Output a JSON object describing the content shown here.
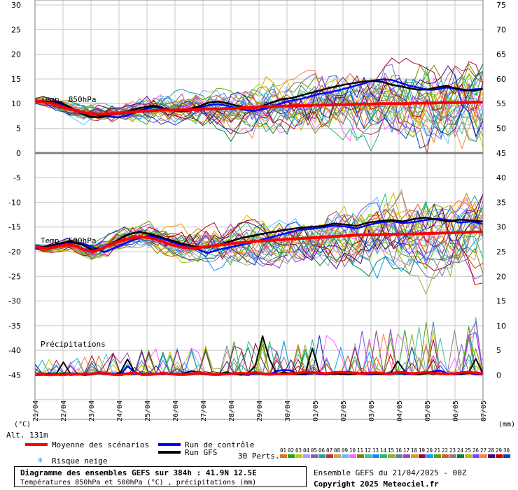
{
  "chart_data": {
    "type": "line",
    "title": "Diagramme des ensembles GEFS sur 384h : 41.9N 12.5E",
    "subtitle": "Températures 850hPa et 500hPa (°C) , précipitations (mm)",
    "x_tick_labels": [
      "21/04",
      "22/04",
      "23/04",
      "24/04",
      "25/04",
      "26/04",
      "27/04",
      "28/04",
      "29/04",
      "30/04",
      "01/05",
      "02/05",
      "03/05",
      "04/05",
      "05/05",
      "06/05",
      "07/05"
    ],
    "left_axis": {
      "unit_label": "(°C)",
      "ticks": [
        30,
        25,
        20,
        15,
        10,
        5,
        0,
        -5,
        -10,
        -15,
        -20,
        -25,
        -30,
        -35,
        -40,
        -45
      ],
      "ylim": [
        -54,
        31
      ]
    },
    "right_axis": {
      "unit_label": "(mm)",
      "ticks": [
        75,
        70,
        65,
        60,
        55,
        50,
        45,
        40,
        35,
        30,
        25,
        20,
        15,
        10,
        5,
        0
      ]
    },
    "panels": [
      {
        "label": "Temp. 850hPa",
        "mean_scenarios": [
          10.5,
          10.4,
          10.2,
          9.8,
          9.3,
          8.9,
          8.5,
          8.2,
          8.0,
          7.9,
          7.9,
          8.0,
          8.1,
          8.2,
          8.3,
          8.4,
          8.5,
          8.6,
          8.7,
          8.7,
          8.7,
          8.8,
          8.8,
          8.8,
          8.9,
          8.9,
          8.9,
          9.0,
          9.0,
          9.1,
          9.2,
          9.2,
          9.3,
          9.4,
          9.4,
          9.5,
          9.5,
          9.6,
          9.6,
          9.6,
          9.7,
          9.7,
          9.7,
          9.8,
          9.8,
          9.8,
          9.9,
          9.9,
          9.9,
          10.0,
          10.0,
          10.0,
          10.0,
          10.0,
          10.1,
          10.1,
          10.1,
          10.1,
          10.2,
          10.2,
          10.2,
          10.2,
          10.2,
          10.3,
          10.3
        ],
        "control_run": [
          10.6,
          10.5,
          10.3,
          9.7,
          9.0,
          8.4,
          7.9,
          7.6,
          7.4,
          7.2,
          7.5,
          8.3,
          8.9,
          9.3,
          9.1,
          8.6,
          8.4,
          8.6,
          9.2,
          9.7,
          9.9,
          9.6,
          9.1,
          8.7,
          8.5,
          8.9,
          9.4,
          10.1,
          10.6,
          10.9,
          11.4,
          11.9,
          12.2,
          12.6,
          13.1,
          13.6,
          14.1,
          14.7,
          14.9,
          14.8,
          14.2,
          13.6,
          13.2,
          12.8,
          12.9,
          13.3,
          13.0,
          12.6,
          12.9,
          13.0
        ],
        "gfs_run": [
          10.4,
          10.3,
          10.5,
          10.0,
          9.1,
          8.1,
          7.4,
          7.2,
          7.6,
          8.0,
          8.4,
          8.9,
          9.3,
          9.6,
          9.1,
          8.7,
          8.5,
          9.0,
          9.5,
          10.2,
          10.4,
          10.1,
          9.6,
          9.3,
          9.1,
          9.6,
          10.3,
          10.9,
          11.1,
          11.6,
          12.1,
          12.6,
          13.1,
          13.5,
          13.9,
          14.2,
          14.5,
          14.6,
          14.4,
          13.8,
          13.5,
          13.1,
          12.8,
          12.9,
          13.3,
          13.6,
          13.1,
          12.8,
          12.6,
          13.0
        ]
      },
      {
        "label": "Temp. 500hPa",
        "mean_scenarios": [
          -19.0,
          -19.3,
          -19.2,
          -18.9,
          -18.6,
          -18.8,
          -19.6,
          -20.0,
          -19.5,
          -18.8,
          -18.1,
          -17.6,
          -17.2,
          -17.0,
          -17.2,
          -17.6,
          -18.2,
          -18.7,
          -19.1,
          -19.3,
          -19.2,
          -19.0,
          -18.8,
          -18.6,
          -18.4,
          -18.2,
          -18.1,
          -17.9,
          -17.8,
          -17.7,
          -17.6,
          -17.5,
          -17.4,
          -17.3,
          -17.2,
          -17.1,
          -17.0,
          -16.9,
          -16.8,
          -16.7,
          -16.6,
          -16.6,
          -16.6,
          -16.5,
          -16.5,
          -16.5,
          -16.4,
          -16.4,
          -16.3,
          -16.3,
          -16.2,
          -16.2,
          -16.1,
          -16.1,
          -16.0,
          -16.0
        ],
        "control_run": [
          -19.4,
          -19.1,
          -18.6,
          -18.2,
          -18.3,
          -19.1,
          -20.1,
          -19.2,
          -18.1,
          -17.3,
          -16.8,
          -17.3,
          -18.1,
          -18.9,
          -19.4,
          -20.3,
          -19.6,
          -19.1,
          -18.6,
          -18.1,
          -17.4,
          -16.8,
          -16.2,
          -15.6,
          -15.4,
          -15.1,
          -14.7,
          -14.9,
          -15.3,
          -14.6,
          -14.1,
          -13.8,
          -14.2,
          -14.0,
          -13.6,
          -13.3,
          -13.6,
          -14.1,
          -13.9,
          -14.4
        ],
        "gfs_run": [
          -19.1,
          -19.0,
          -18.4,
          -17.9,
          -18.5,
          -19.6,
          -19.2,
          -17.9,
          -16.6,
          -16.0,
          -16.4,
          -17.1,
          -17.8,
          -18.5,
          -19.0,
          -19.2,
          -18.6,
          -17.9,
          -17.2,
          -16.8,
          -16.3,
          -15.9,
          -15.5,
          -15.2,
          -15.0,
          -14.8,
          -14.3,
          -14.5,
          -14.8,
          -14.1,
          -13.8,
          -13.6,
          -13.9,
          -13.4,
          -13.1,
          -13.5,
          -13.9,
          -13.5,
          -13.7,
          -13.9
        ]
      },
      {
        "label": "Précipitations",
        "mean_scenarios": [
          0,
          0.1,
          0,
          0.1,
          0,
          0.2,
          0.1,
          0.3,
          0.2,
          0.6,
          0.3,
          0.1,
          0,
          0.3,
          0.5,
          0.1,
          0.1,
          0.2,
          0.4,
          0.2,
          0.1,
          0.1,
          0.2,
          0.6,
          0.3,
          0.1,
          0.1,
          0.2,
          0.3,
          0.4,
          0.3,
          0.6,
          0.2,
          0.1,
          0.2,
          0.2,
          0.3,
          0.4,
          0.6,
          0.5,
          0.4,
          0.3,
          0.5,
          0.6,
          0.5,
          0.4,
          0.3,
          0.4,
          0.5,
          0.3,
          0.2,
          0.6,
          0.5,
          0.3,
          0.4,
          0.6,
          0.4,
          0.3,
          0.2,
          0.3,
          0.5,
          0.6,
          0.4,
          0.3
        ],
        "control_run": [
          0,
          0,
          0.2,
          0,
          0.3,
          0,
          0.1,
          0,
          0.1,
          0.4,
          0.2,
          0,
          0,
          1.8,
          0.6,
          0,
          0,
          0.1,
          0.3,
          0.2,
          0,
          0,
          0.1,
          0.5,
          0.2,
          0,
          0,
          0.2,
          0.3,
          0.1,
          0,
          0.4,
          0.3,
          0.1,
          0.8,
          1.0,
          0.9,
          0.2,
          0.1,
          0.6,
          0.2,
          0.1,
          0.3,
          0.5,
          0.7,
          0.4,
          0.2,
          0.1,
          0.3,
          0.2,
          0.1,
          0.5,
          0.3,
          0.2,
          0.1,
          0.4,
          0.7,
          0.9,
          0.3,
          0.1,
          0.2,
          0.4,
          0.2,
          0.1
        ],
        "gfs_run": [
          0,
          0,
          0,
          0.3,
          2.6,
          0.2,
          0.3,
          0,
          0.2,
          0.5,
          0.3,
          0,
          0.5,
          3.2,
          0.6,
          0.1,
          0,
          0.2,
          0.5,
          0.3,
          0,
          0.4,
          0.8,
          0.6,
          0.1,
          0,
          0.3,
          0.6,
          0.2,
          0,
          0.4,
          1.9,
          7.9,
          3.1,
          0.2,
          0.6,
          0.3,
          0.1,
          0.2,
          5.4,
          0.6,
          0.2,
          0.3,
          0.2,
          0.1,
          0.2,
          0.5,
          0.4,
          0.2,
          0.1,
          0.3,
          2.8,
          0.7,
          0.2,
          0.1,
          0.3,
          0.6,
          0.3,
          0.2,
          0.4,
          0.2,
          0.5,
          3.3,
          0.2
        ]
      }
    ],
    "legend": [
      {
        "name": "Moyenne des scénarios",
        "color": "#ff0000"
      },
      {
        "name": "Run de contrôle",
        "color": "#0000ff"
      },
      {
        "name": "Run GFS",
        "color": "#000000"
      },
      {
        "name": "Risque neige"
      }
    ],
    "perturbations": {
      "title": "30 Perts.",
      "labels": [
        "01",
        "02",
        "03",
        "04",
        "05",
        "06",
        "07",
        "08",
        "09",
        "10",
        "11",
        "12",
        "13",
        "14",
        "15",
        "16",
        "17",
        "18",
        "19",
        "20",
        "21",
        "22",
        "23",
        "24",
        "25",
        "26",
        "27",
        "28",
        "29",
        "30"
      ],
      "colors": [
        "#e07020",
        "#22a022",
        "#c8c800",
        "#a0a0ff",
        "#8060c0",
        "#20a0a0",
        "#c03030",
        "#d0a060",
        "#60c0ff",
        "#ff60ff",
        "#808000",
        "#40c0a0",
        "#2080ff",
        "#20c060",
        "#90b030",
        "#6080a0",
        "#b040b0",
        "#e0a000",
        "#a00040",
        "#00a0ff",
        "#60a000",
        "#d06020",
        "#808080",
        "#008040",
        "#c0c000",
        "#8040ff",
        "#ff8040",
        "#400080",
        "#c00000",
        "#0040c0"
      ]
    },
    "grid": true
  },
  "alt_label": "Alt. 131m",
  "footer": {
    "title": "Diagramme des ensembles GEFS sur 384h : 41.9N 12.5E",
    "subtitle": "Températures 850hPa et 500hPa (°C) , précipitations (mm)",
    "run_info": "Ensemble GEFS du 21/04/2025 - 00Z",
    "copyright": "Copyright 2025 Meteociel.fr"
  }
}
